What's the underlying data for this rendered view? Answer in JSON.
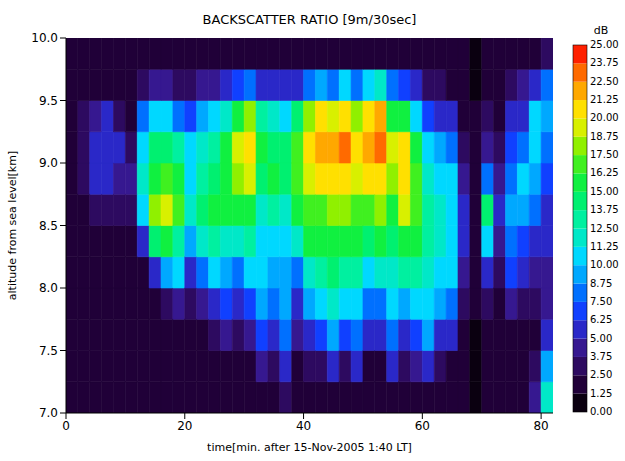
{
  "chart_data": {
    "type": "heatmap",
    "title": "BACKSCATTER RATIO [9m/30sec]",
    "x_label": "time[min. after 15-Nov-2005  1:40 LT]",
    "y_label": "altitude from sea level[km]",
    "xlim": [
      0,
      82
    ],
    "xticks": [
      0,
      20,
      40,
      60,
      80
    ],
    "ylim": [
      7,
      10
    ],
    "yticks": [
      {
        "value": 7,
        "label": "7.0"
      },
      7.5,
      {
        "value": 8,
        "label": "8.0"
      },
      8.5,
      {
        "value": 9,
        "label": "9.0"
      },
      9.5,
      {
        "value": 10,
        "label": "10.0"
      }
    ],
    "colorbar_label": "dB",
    "zlim": [
      0,
      25
    ],
    "zticks": [
      {
        "value": 0,
        "label": "0.00"
      },
      {
        "value": 1.25,
        "label": "1.25"
      },
      {
        "value": 2.5,
        "label": "2.50"
      },
      {
        "value": 3.75,
        "label": "3.75"
      },
      {
        "value": 5,
        "label": "5.00"
      },
      {
        "value": 6.25,
        "label": "6.25"
      },
      {
        "value": 7.5,
        "label": "7.50"
      },
      {
        "value": 8.75,
        "label": "8.75"
      },
      {
        "value": 10,
        "label": "10.00"
      },
      {
        "value": 11.25,
        "label": "11.25"
      },
      {
        "value": 12.5,
        "label": "12.50"
      },
      {
        "value": 13.75,
        "label": "13.75"
      },
      {
        "value": 15,
        "label": "15.00"
      },
      {
        "value": 16.25,
        "label": "16.25"
      },
      {
        "value": 17.5,
        "label": "17.50"
      },
      {
        "value": 18.75,
        "label": "18.75"
      },
      {
        "value": 20,
        "label": "20.00"
      },
      {
        "value": 21.25,
        "label": "21.25"
      },
      {
        "value": 22.5,
        "label": "22.50"
      },
      {
        "value": 23.75,
        "label": "23.75"
      },
      {
        "value": 25,
        "label": "25.00"
      }
    ],
    "cells": {
      "x": [
        1,
        3,
        5,
        7,
        9,
        11,
        13,
        15,
        17,
        19,
        21,
        23,
        25,
        27,
        29,
        31,
        33,
        35,
        37,
        39,
        41,
        43,
        45,
        47,
        49,
        51,
        53,
        55,
        57,
        59,
        61,
        63,
        65,
        67,
        69,
        71,
        73,
        75,
        77,
        79,
        81
      ],
      "y": [
        7.125,
        7.375,
        7.625,
        7.875,
        8.125,
        8.375,
        8.625,
        8.875,
        9.125,
        9.375,
        9.625,
        9.875
      ],
      "values": [
        [
          1.5,
          1.5,
          1.5,
          1.5,
          1.5,
          1.5,
          1.5,
          2,
          2,
          2,
          1.5,
          1.5
        ],
        [
          1.5,
          1.5,
          1.5,
          1.5,
          1.5,
          1.5,
          2,
          3,
          3,
          2.5,
          1.5,
          1.5
        ],
        [
          1.5,
          1.5,
          1.5,
          1.5,
          1.5,
          2,
          3,
          5,
          6,
          4,
          2,
          1.5
        ],
        [
          1.5,
          1.5,
          1.5,
          1.5,
          1.5,
          2,
          3,
          6,
          6,
          5,
          2,
          1.5
        ],
        [
          1.5,
          1.5,
          1.5,
          1.5,
          1.5,
          1.5,
          2.5,
          4,
          5,
          3,
          1.5,
          1.5
        ],
        [
          1.5,
          1.5,
          1.5,
          1.5,
          1.5,
          2,
          3,
          4,
          3,
          2,
          1.5,
          1.5
        ],
        [
          1.5,
          1.5,
          1.5,
          1.5,
          2,
          6,
          10,
          12,
          11,
          8,
          3,
          1.5
        ],
        [
          1.5,
          1.5,
          1.5,
          2,
          6,
          14,
          18,
          16,
          14,
          11,
          4,
          1.5
        ],
        [
          1.5,
          1.5,
          1.5,
          3,
          9,
          16,
          19,
          17,
          14,
          10,
          4,
          1.5
        ],
        [
          1.5,
          1.5,
          2,
          4,
          10,
          13,
          17,
          16,
          13,
          8,
          3,
          1.5
        ],
        [
          1.5,
          1.5,
          1.5,
          3,
          6,
          9,
          12,
          11,
          10,
          7,
          3,
          1.5
        ],
        [
          1.5,
          1.5,
          1.5,
          4,
          8,
          12,
          14,
          13,
          12,
          9,
          4,
          1.5
        ],
        [
          1.5,
          1.5,
          3,
          6,
          10,
          13,
          15,
          14,
          13,
          10,
          4,
          1.5
        ],
        [
          1.5,
          2,
          4,
          7,
          9,
          12,
          15,
          16,
          15,
          12,
          5,
          1.5
        ],
        [
          1.5,
          1.5,
          3,
          5,
          8,
          12,
          16,
          18,
          19,
          16,
          7,
          1.5
        ],
        [
          1.5,
          2,
          4,
          7,
          10,
          13,
          16,
          19,
          21,
          18,
          8,
          2
        ],
        [
          2,
          4,
          7,
          9,
          10,
          11,
          12,
          14,
          15,
          13,
          6,
          1.5
        ],
        [
          1.5,
          3,
          6,
          8,
          9,
          11,
          13,
          15,
          14,
          12,
          6,
          1.5
        ],
        [
          3,
          6,
          8,
          9,
          9,
          10,
          12,
          14,
          14,
          11,
          5,
          1.5
        ],
        [
          1.5,
          2,
          4,
          6,
          8,
          12,
          15,
          17,
          17,
          14,
          6,
          1.5
        ],
        [
          1.5,
          3,
          6,
          9,
          12,
          15,
          17,
          19,
          20,
          18,
          8,
          1.5
        ],
        [
          1.5,
          3,
          7,
          10,
          13,
          15,
          17,
          20,
          22,
          20,
          9,
          1.5
        ],
        [
          2,
          5,
          9,
          12,
          14,
          16,
          18,
          21,
          22,
          19,
          8,
          1.5
        ],
        [
          1.5,
          3,
          7,
          10,
          13,
          15,
          18,
          20,
          23,
          21,
          10,
          1.5
        ],
        [
          2,
          5,
          8,
          11,
          13,
          15,
          17,
          19,
          21,
          18,
          8,
          1.5
        ],
        [
          1.5,
          2,
          5,
          8,
          11,
          14,
          17,
          20,
          22,
          21,
          11,
          2
        ],
        [
          1.5,
          2,
          5,
          8,
          12,
          15,
          18,
          20,
          23,
          22,
          12,
          2
        ],
        [
          2,
          5,
          8,
          10,
          12,
          14,
          16,
          18,
          19,
          16,
          8,
          1.5
        ],
        [
          1.5,
          3,
          6,
          9,
          13,
          16,
          19,
          20,
          20,
          16,
          7,
          1.5
        ],
        [
          1.5,
          4,
          7,
          10,
          13,
          15,
          17,
          17,
          15,
          11,
          5,
          1.5
        ],
        [
          2,
          6,
          9,
          11,
          12,
          13,
          13,
          12,
          10,
          7,
          3,
          1.5
        ],
        [
          1.5,
          3,
          6,
          9,
          11,
          12,
          12,
          11,
          9,
          6,
          3,
          1.5
        ],
        [
          1.5,
          2,
          5,
          8,
          10,
          11,
          11,
          10,
          8,
          5,
          2,
          1.5
        ],
        [
          1.5,
          1.5,
          2,
          3,
          4,
          5,
          5,
          4,
          3,
          2,
          1.5,
          1.5
        ],
        [
          1,
          1,
          1,
          1.5,
          2,
          2,
          2,
          2,
          2,
          1.5,
          1,
          1
        ],
        [
          1.5,
          1.5,
          2,
          3,
          5,
          10,
          14,
          8,
          4,
          3,
          2,
          1.5
        ],
        [
          1.5,
          1.5,
          2,
          2,
          3,
          4,
          5,
          4,
          3,
          2,
          2,
          2
        ],
        [
          1.5,
          1.5,
          2,
          4,
          7,
          8,
          9,
          8,
          7,
          5,
          3,
          1.5
        ],
        [
          1.5,
          1.5,
          2,
          3,
          5,
          7,
          9,
          10,
          8,
          6,
          4,
          2
        ],
        [
          4,
          3,
          2,
          3,
          4,
          6,
          8,
          9,
          10,
          10,
          6,
          2
        ],
        [
          12,
          9,
          5,
          4,
          4,
          5,
          6,
          7,
          8,
          9,
          8,
          3
        ]
      ]
    }
  }
}
